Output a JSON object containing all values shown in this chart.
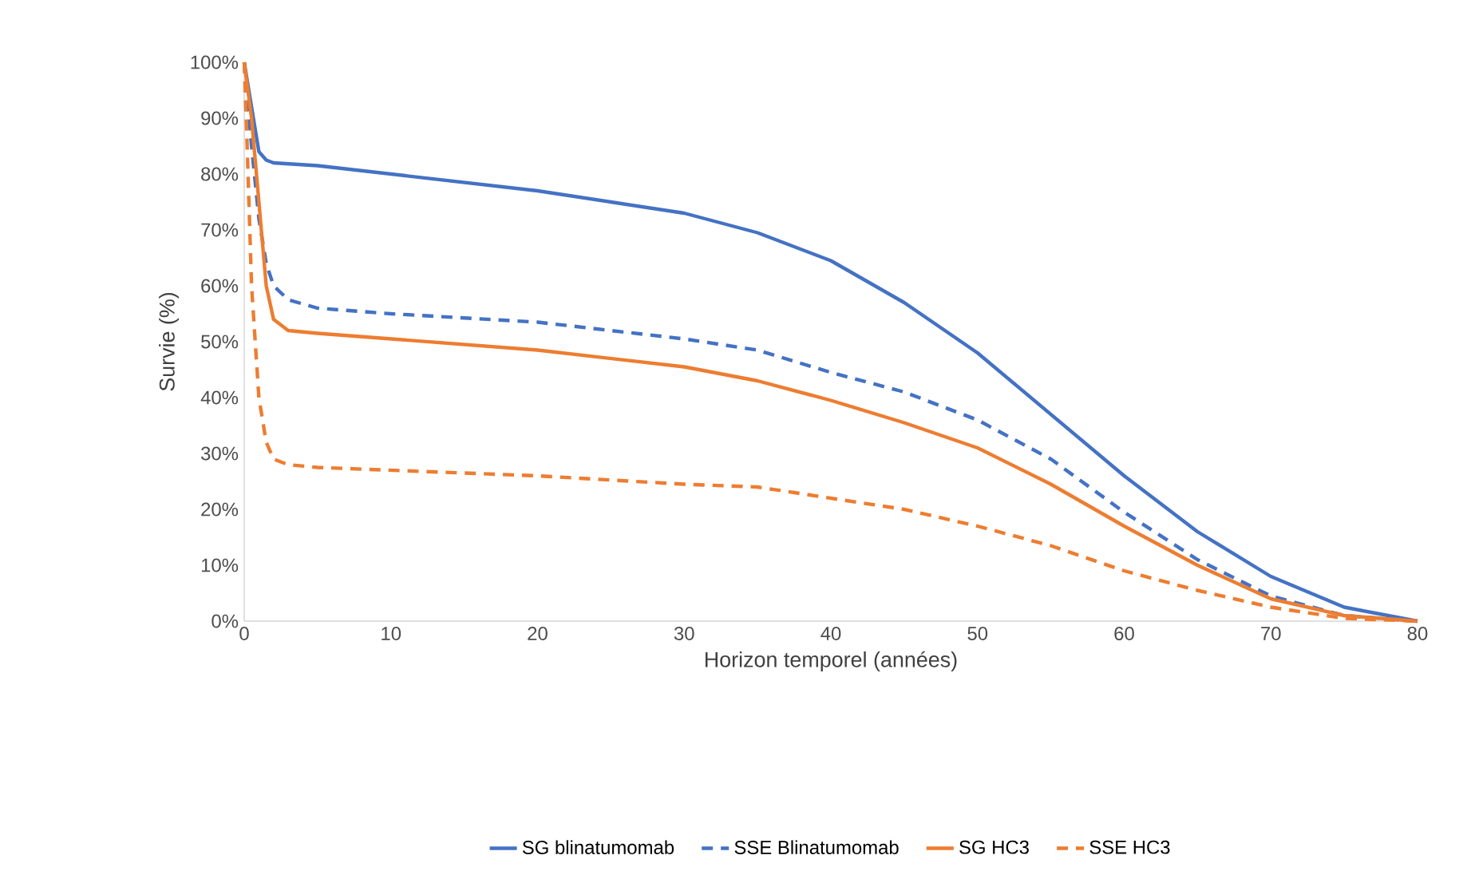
{
  "chart_data": {
    "type": "line",
    "xlabel": "Horizon temporel (années)",
    "ylabel": "Survie (%)",
    "xlim": [
      0,
      80
    ],
    "xticks": [
      0,
      10,
      20,
      30,
      40,
      50,
      60,
      70,
      80
    ],
    "ylim": [
      0,
      100
    ],
    "yticks": [
      {
        "value": 0,
        "label": "0%"
      },
      {
        "value": 10,
        "label": "10%"
      },
      {
        "value": 20,
        "label": "20%"
      },
      {
        "value": 30,
        "label": "30%"
      },
      {
        "value": 40,
        "label": "40%"
      },
      {
        "value": 50,
        "label": "50%"
      },
      {
        "value": 60,
        "label": "60%"
      },
      {
        "value": 70,
        "label": "70%"
      },
      {
        "value": 80,
        "label": "80%"
      },
      {
        "value": 90,
        "label": "90%"
      },
      {
        "value": 100,
        "label": "100%"
      }
    ],
    "legend": "bottom",
    "grid": false,
    "marker": "none",
    "series": [
      {
        "name": "SG blinatumomab",
        "color": "#4472c4",
        "line_style": "solid",
        "x": [
          0,
          0.5,
          1,
          1.5,
          2,
          5,
          10,
          15,
          20,
          25,
          30,
          35,
          40,
          45,
          50,
          55,
          60,
          65,
          70,
          75,
          80
        ],
        "values": [
          100,
          92,
          84,
          82.5,
          82,
          81.5,
          80,
          78.5,
          77,
          75,
          73,
          69.5,
          64.5,
          57,
          48,
          37,
          26,
          16,
          8,
          2.5,
          0
        ]
      },
      {
        "name": "SSE Blinatumomab",
        "color": "#4472c4",
        "line_style": "dashed",
        "x": [
          0,
          0.5,
          1,
          1.5,
          2,
          3,
          5,
          10,
          20,
          30,
          35,
          40,
          45,
          50,
          55,
          60,
          65,
          70,
          75,
          80
        ],
        "values": [
          100,
          85,
          72,
          64,
          60,
          57.5,
          56,
          55,
          53.5,
          50.5,
          48.5,
          44.5,
          41,
          36,
          29,
          19.5,
          11,
          4.5,
          1,
          0
        ]
      },
      {
        "name": "SG HC3",
        "color": "#ed7d31",
        "line_style": "solid",
        "x": [
          0,
          0.5,
          1,
          1.5,
          2,
          3,
          5,
          10,
          20,
          30,
          35,
          40,
          45,
          50,
          55,
          60,
          65,
          70,
          75,
          80
        ],
        "values": [
          100,
          90,
          75,
          60,
          54,
          52,
          51.5,
          50.5,
          48.5,
          45.5,
          43,
          39.5,
          35.5,
          31,
          24.5,
          17,
          10,
          4,
          1,
          0
        ]
      },
      {
        "name": "SSE HC3",
        "color": "#ed7d31",
        "line_style": "dashed",
        "x": [
          0,
          0.2,
          0.5,
          1,
          1.5,
          2,
          3,
          5,
          10,
          20,
          30,
          35,
          40,
          45,
          50,
          55,
          60,
          65,
          70,
          75,
          80
        ],
        "values": [
          100,
          85,
          60,
          40,
          32,
          29,
          28,
          27.5,
          27,
          26,
          24.5,
          24,
          22,
          20,
          17,
          13.5,
          9,
          5.5,
          2.5,
          0.5,
          0
        ]
      }
    ]
  }
}
